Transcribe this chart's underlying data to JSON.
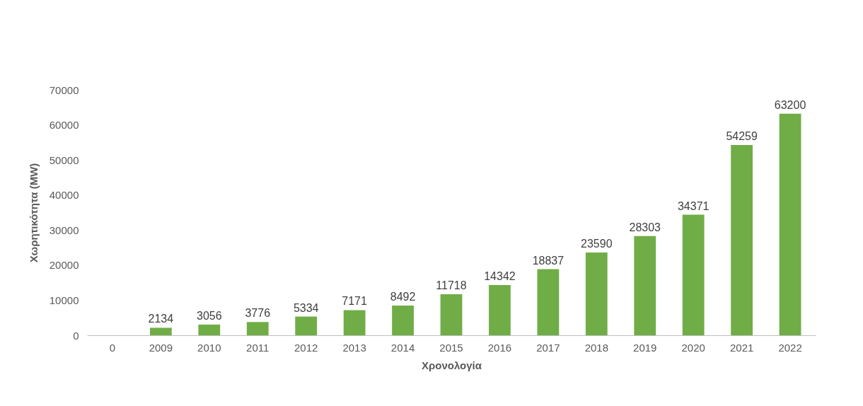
{
  "chart_data": {
    "type": "bar",
    "xlabel": "Χρονολογία",
    "ylabel": "Χωρητικότητα (MW)",
    "categories": [
      "0",
      "2009",
      "2010",
      "2011",
      "2012",
      "2013",
      "2014",
      "2015",
      "2016",
      "2017",
      "2018",
      "2019",
      "2020",
      "2021",
      "2022"
    ],
    "values": [
      null,
      2134,
      3056,
      3776,
      5334,
      7171,
      8492,
      11718,
      14342,
      18837,
      23590,
      28303,
      34371,
      54259,
      63200
    ],
    "value_labels": [
      null,
      "2134",
      "3056",
      "3776",
      "5334",
      "7171",
      "8492",
      "11718",
      "14342",
      "18837",
      "23590",
      "28303",
      "34371",
      "54259",
      "63200"
    ],
    "color": "#70ad47",
    "ylim": [
      0,
      70000
    ],
    "yticks": [
      0,
      10000,
      20000,
      30000,
      40000,
      50000,
      60000,
      70000
    ],
    "grid": false
  }
}
